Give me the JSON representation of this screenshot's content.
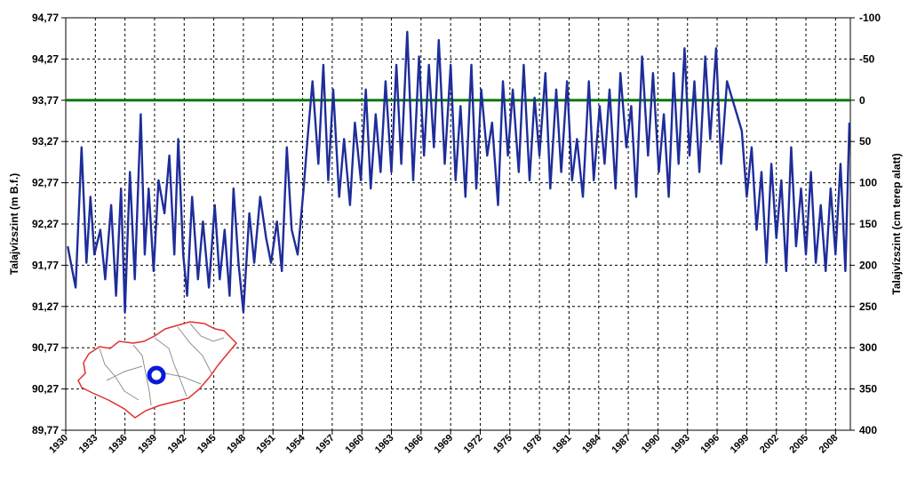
{
  "chart_data": {
    "type": "line",
    "title": "",
    "ylabel": "Talajvízszint (m B.f.)",
    "ylabel_right": "Talajvízszint (cm terep alatt)",
    "ylim": [
      89.77,
      94.77
    ],
    "xlim": [
      1930,
      2009.5
    ],
    "y_ticks": [
      "94,77",
      "94,27",
      "93,77",
      "93,27",
      "92,77",
      "92,27",
      "91,77",
      "91,27",
      "90,77",
      "90,27",
      "89,77"
    ],
    "y_right_ticks": [
      "-100",
      "-50",
      "0",
      "50",
      "100",
      "150",
      "200",
      "250",
      "300",
      "350",
      "400"
    ],
    "x_ticks": [
      "1930",
      "1933",
      "1936",
      "1939",
      "1942",
      "1945",
      "1948",
      "1951",
      "1954",
      "1957",
      "1960",
      "1963",
      "1966",
      "1969",
      "1972",
      "1975",
      "1978",
      "1981",
      "1984",
      "1987",
      "1990",
      "1993",
      "1996",
      "1999",
      "2002",
      "2005",
      "2008"
    ],
    "reference_line": {
      "value": 93.77,
      "color": "#0a7a0a"
    },
    "series": [
      {
        "color": "#1f2d9a",
        "x": [
          1930.2,
          1931.0,
          1931.6,
          1932.1,
          1932.5,
          1932.9,
          1933.5,
          1934.0,
          1934.6,
          1935.1,
          1935.6,
          1936.0,
          1936.5,
          1937.0,
          1937.6,
          1938.0,
          1938.4,
          1938.9,
          1939.4,
          1940.0,
          1940.5,
          1941.0,
          1941.4,
          1941.9,
          1942.3,
          1942.8,
          1943.4,
          1943.9,
          1944.5,
          1945.1,
          1945.6,
          1946.1,
          1946.6,
          1947.0,
          1947.5,
          1948.0,
          1948.6,
          1949.1,
          1949.7,
          1950.3,
          1950.8,
          1951.4,
          1951.9,
          1952.4,
          1952.9,
          1953.5,
          1954.1,
          1954.5,
          1955.0,
          1955.6,
          1956.1,
          1956.6,
          1957.1,
          1957.7,
          1958.2,
          1958.8,
          1959.3,
          1959.9,
          1960.4,
          1960.9,
          1961.4,
          1961.9,
          1962.4,
          1963.0,
          1963.5,
          1964.0,
          1964.6,
          1965.2,
          1965.8,
          1966.3,
          1966.8,
          1967.3,
          1967.8,
          1968.4,
          1969.0,
          1969.5,
          1970.0,
          1970.5,
          1971.1,
          1971.6,
          1972.1,
          1972.7,
          1973.2,
          1973.8,
          1974.3,
          1974.8,
          1975.3,
          1975.9,
          1976.4,
          1977.0,
          1977.5,
          1978.0,
          1978.6,
          1979.1,
          1979.7,
          1980.2,
          1980.8,
          1981.3,
          1981.8,
          1982.4,
          1983.0,
          1983.5,
          1984.1,
          1984.6,
          1985.1,
          1985.7,
          1986.2,
          1986.8,
          1987.3,
          1987.8,
          1988.4,
          1989.0,
          1989.5,
          1990.1,
          1990.6,
          1991.1,
          1991.6,
          1992.1,
          1992.7,
          1993.2,
          1993.7,
          1994.2,
          1994.8,
          1995.3,
          1995.9,
          1996.4,
          1997.0,
          1997.5,
          1998.0,
          1998.5,
          1999.0,
          1999.5,
          2000.0,
          2000.5,
          2001.0,
          2001.5,
          2002.0,
          2002.5,
          2003.0,
          2003.5,
          2004.0,
          2004.5,
          2005.0,
          2005.5,
          2006.0,
          2006.5,
          2007.0,
          2007.5,
          2008.0,
          2008.5,
          2009.0,
          2009.4
        ],
        "y": [
          92.0,
          91.5,
          93.2,
          91.8,
          92.6,
          91.9,
          92.2,
          91.6,
          92.5,
          91.4,
          92.7,
          91.2,
          92.9,
          91.6,
          93.6,
          91.9,
          92.7,
          91.7,
          92.8,
          92.4,
          93.1,
          91.9,
          93.3,
          91.9,
          91.4,
          92.6,
          91.6,
          92.3,
          91.5,
          92.5,
          91.6,
          92.2,
          91.4,
          92.7,
          91.8,
          91.2,
          92.4,
          91.8,
          92.6,
          92.1,
          91.8,
          92.3,
          91.7,
          93.2,
          92.2,
          91.9,
          92.7,
          93.3,
          94.0,
          93.0,
          94.2,
          92.8,
          93.9,
          92.6,
          93.3,
          92.5,
          93.5,
          92.8,
          93.9,
          92.7,
          93.6,
          92.9,
          94.0,
          92.9,
          94.2,
          93.0,
          94.6,
          92.8,
          94.3,
          93.1,
          94.2,
          93.2,
          94.5,
          93.0,
          94.2,
          92.8,
          93.7,
          92.6,
          94.2,
          92.7,
          93.9,
          93.1,
          93.5,
          92.5,
          94.0,
          93.1,
          93.9,
          92.9,
          94.2,
          92.8,
          93.8,
          93.1,
          94.1,
          92.7,
          93.9,
          92.9,
          94.0,
          92.8,
          93.3,
          92.6,
          94.0,
          92.8,
          93.7,
          93.0,
          93.9,
          92.7,
          94.1,
          93.2,
          93.7,
          92.6,
          94.3,
          93.1,
          94.1,
          92.9,
          93.6,
          92.6,
          94.1,
          93.0,
          94.4,
          93.1,
          94.0,
          92.9,
          94.3,
          93.3,
          94.4,
          93.0,
          94.0,
          93.8,
          93.6,
          93.4,
          92.6,
          93.2,
          92.2,
          92.9,
          91.8,
          93.0,
          92.1,
          92.8,
          91.7,
          93.2,
          92.0,
          92.7,
          91.9,
          92.9,
          91.8,
          92.5,
          91.7,
          92.7,
          91.9,
          93.0,
          91.7,
          93.5
        ]
      }
    ]
  }
}
